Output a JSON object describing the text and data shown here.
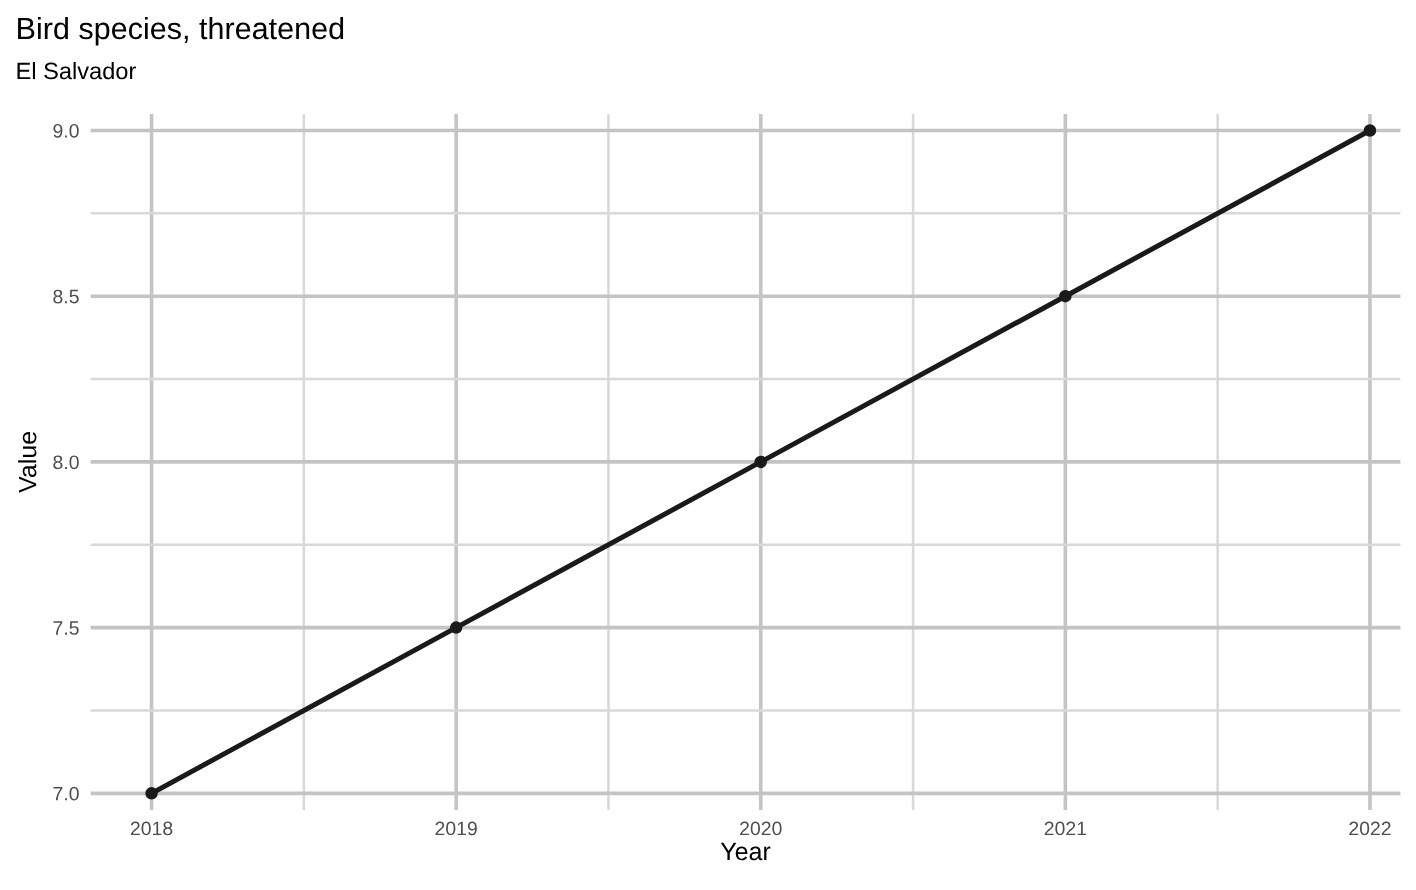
{
  "chart_data": {
    "type": "line",
    "title": "Bird species, threatened",
    "subtitle": "El Salvador",
    "xlabel": "Year",
    "ylabel": "Value",
    "x": [
      2018,
      2019,
      2020,
      2021,
      2022
    ],
    "series": [
      {
        "color": "#1a1a1a",
        "values": [
          7.0,
          7.5,
          8.0,
          8.5,
          9.0
        ]
      }
    ],
    "xlim": [
      2017.8,
      2022.1
    ],
    "ylim": [
      6.95,
      9.05
    ],
    "xticks": [
      2018,
      2019,
      2020,
      2021,
      2022
    ],
    "yticks": [
      {
        "value": 7.0,
        "label": "7.0"
      },
      {
        "value": 7.5,
        "label": "7.5"
      },
      {
        "value": 8.0,
        "label": "8.0"
      },
      {
        "value": 8.5,
        "label": "8.5"
      },
      {
        "value": 9.0,
        "label": "9.0"
      }
    ],
    "grid": true,
    "marker": "circle",
    "line_style": "solid"
  }
}
